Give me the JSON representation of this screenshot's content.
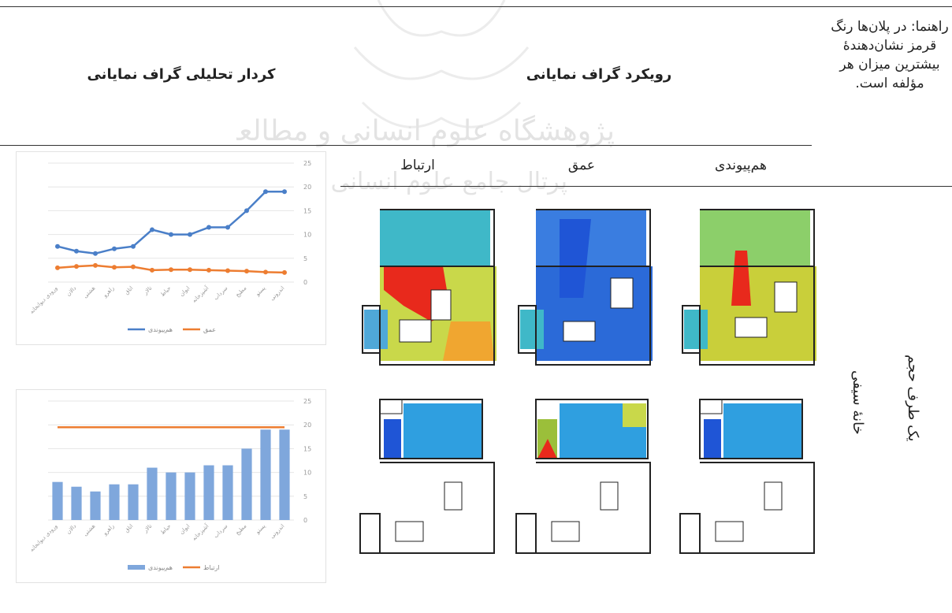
{
  "headers": {
    "chart_column": "کردار تحلیلی گراف نمایانی",
    "plan_column": "رویکرد گراف نمایانی"
  },
  "note": "راهنما: در پلان‌ها رنگ قرمز نشان‌دهندهٔ بیشترین میزان هر مؤلفه است.",
  "columns": {
    "connectivity": "ارتباط",
    "depth": "عمق",
    "integration": "هم‌پیوندی"
  },
  "row_labels": {
    "house": "خانهٔ سیفی",
    "type": "یک طرف حجم"
  },
  "watermark": {
    "line1": "پژوهشگاه علوم انسانی و مطالعات فرهنگی",
    "line2": "پرتال جامع علوم انسانی"
  },
  "colors": {
    "blue": "#4a7fc8",
    "orange": "#ed7d31",
    "bar_blue": "#7fa7dc",
    "plan_red": "#e8291c",
    "plan_blue": "#1f55d6"
  },
  "chart_data": [
    {
      "type": "line",
      "ylim": [
        0,
        25
      ],
      "yticks": [
        "0",
        "5",
        "10",
        "15",
        "20",
        "25"
      ],
      "categories": [
        "ورودی دیوانخانه",
        "دالان",
        "هشتی",
        "راهرو",
        "اتاق",
        "تالار",
        "حیاط",
        "ایوان",
        "آشپزخانه",
        "سرداب",
        "مطبخ",
        "پستو",
        "اندرونی"
      ],
      "series": [
        {
          "name": "هم‌پیوندی",
          "values": [
            7.5,
            6.5,
            6,
            7,
            7.5,
            11,
            10,
            10,
            11.5,
            11.5,
            15,
            19,
            19
          ]
        },
        {
          "name": "عمق",
          "values": [
            3,
            3.3,
            3.5,
            3.1,
            3.2,
            2.5,
            2.6,
            2.6,
            2.5,
            2.4,
            2.3,
            2.1,
            2.0
          ]
        }
      ],
      "grid": true,
      "legend": "bottom"
    },
    {
      "type": "bar",
      "ylim": [
        0,
        25
      ],
      "yticks": [
        "0",
        "5",
        "10",
        "15",
        "20",
        "25"
      ],
      "categories": [
        "ورودی دیوانخانه",
        "دالان",
        "هشتی",
        "راهرو",
        "اتاق",
        "تالار",
        "حیاط",
        "ایوان",
        "آشپزخانه",
        "سرداب",
        "مطبخ",
        "پستو",
        "اندرونی"
      ],
      "series": [
        {
          "name": "هم‌پیوندی",
          "values": [
            8,
            7,
            6,
            7.5,
            7.5,
            11,
            10,
            10,
            11.5,
            11.5,
            15,
            19,
            19
          ]
        },
        {
          "name": "ارتباط",
          "values": [
            19.5,
            19.5,
            19.5,
            19.5,
            19.5,
            19.5,
            19.5,
            19.5,
            19.5,
            19.5,
            19.5,
            19.5,
            19.5
          ]
        }
      ],
      "grid": true,
      "legend": "bottom"
    }
  ]
}
